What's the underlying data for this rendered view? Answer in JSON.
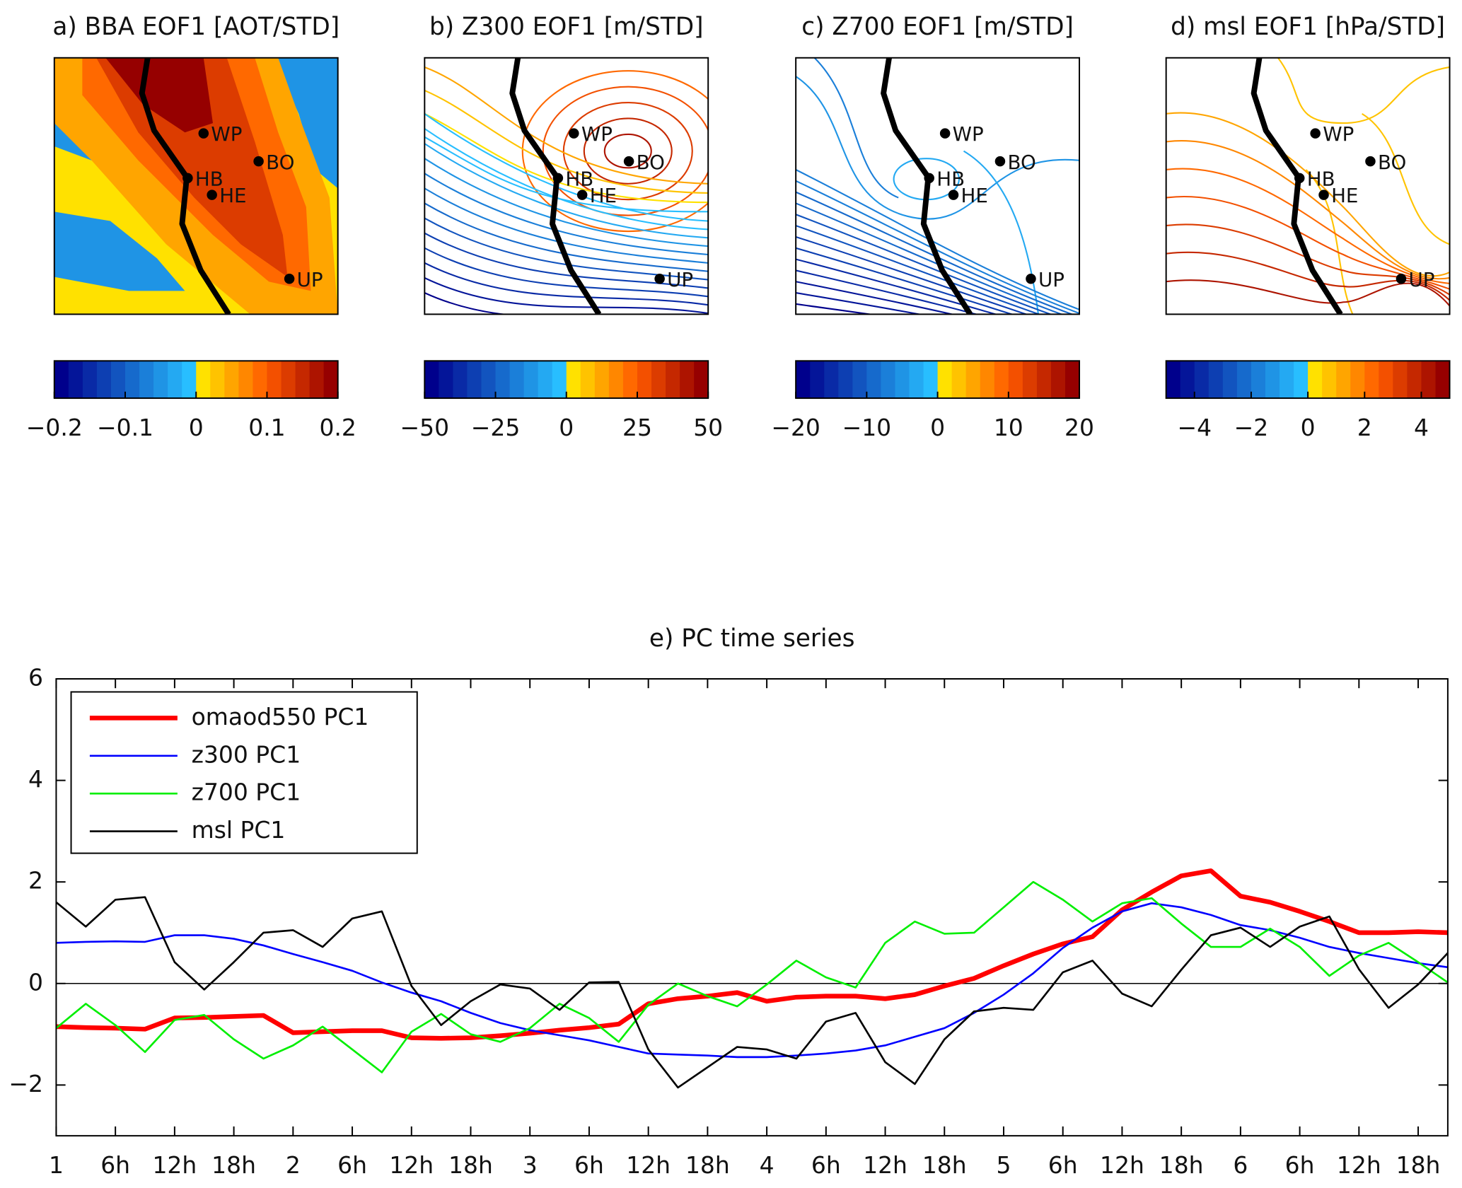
{
  "maps": [
    {
      "title": "a) BBA EOF1 [AOT/STD]",
      "colorbar_lim": [
        -0.2,
        0.2
      ],
      "colorbar_ticks": [
        {
          "value": -0.2,
          "label": "−0.2"
        },
        {
          "value": -0.1,
          "label": "−0.1"
        },
        0,
        0.1,
        0.2
      ]
    },
    {
      "title": "b) Z300 EOF1 [m/STD]",
      "colorbar_lim": [
        -50,
        50
      ],
      "colorbar_ticks": [
        {
          "value": -50,
          "label": "−50"
        },
        {
          "value": -25,
          "label": "−25"
        },
        0,
        25,
        50
      ]
    },
    {
      "title": "c) Z700 EOF1 [m/STD]",
      "colorbar_lim": [
        -20,
        20
      ],
      "colorbar_ticks": [
        {
          "value": -20,
          "label": "−20"
        },
        {
          "value": -10,
          "label": "−10"
        },
        0,
        10,
        20
      ]
    },
    {
      "title": "d) msl EOF1 [hPa/STD]",
      "colorbar_lim": [
        -5,
        5
      ],
      "colorbar_ticks": [
        {
          "value": -4,
          "label": "−4"
        },
        {
          "value": -2,
          "label": "−2"
        },
        0,
        2,
        4
      ]
    }
  ],
  "stations": [
    "WP",
    "BO",
    "HB",
    "HE",
    "UP"
  ],
  "chart_data": {
    "type": "line",
    "title": "e) PC time series",
    "x": [
      0,
      3,
      6,
      9,
      12,
      15,
      18,
      21,
      24,
      27,
      30,
      33,
      36,
      39,
      42,
      45,
      48,
      51,
      54,
      57,
      60,
      63,
      66,
      69,
      72,
      75,
      78,
      81,
      84,
      87,
      90,
      93,
      96,
      99,
      102,
      105,
      108,
      111,
      114,
      117,
      120,
      123,
      126,
      129,
      132,
      135,
      138,
      141
    ],
    "xlim": [
      0,
      141
    ],
    "xticks": [
      {
        "value": 0,
        "label": "1"
      },
      {
        "value": 6,
        "label": "6h"
      },
      {
        "value": 12,
        "label": "12h"
      },
      {
        "value": 18,
        "label": "18h"
      },
      {
        "value": 24,
        "label": "2"
      },
      {
        "value": 30,
        "label": "6h"
      },
      {
        "value": 36,
        "label": "12h"
      },
      {
        "value": 42,
        "label": "18h"
      },
      {
        "value": 48,
        "label": "3"
      },
      {
        "value": 54,
        "label": "6h"
      },
      {
        "value": 60,
        "label": "12h"
      },
      {
        "value": 66,
        "label": "18h"
      },
      {
        "value": 72,
        "label": "4"
      },
      {
        "value": 78,
        "label": "6h"
      },
      {
        "value": 84,
        "label": "12h"
      },
      {
        "value": 90,
        "label": "18h"
      },
      {
        "value": 96,
        "label": "5"
      },
      {
        "value": 102,
        "label": "6h"
      },
      {
        "value": 108,
        "label": "12h"
      },
      {
        "value": 114,
        "label": "18h"
      },
      {
        "value": 120,
        "label": "6"
      },
      {
        "value": 126,
        "label": "6h"
      },
      {
        "value": 132,
        "label": "12h"
      },
      {
        "value": 138,
        "label": "18h"
      }
    ],
    "ylim": [
      -3,
      6
    ],
    "yticks": [
      {
        "value": -2,
        "label": "−2"
      },
      0,
      2,
      4,
      6
    ],
    "reference_line": 0,
    "legend": "upper left",
    "series": [
      {
        "name": "omaod550 PC1",
        "color": "#ff0000",
        "linewidth": 5,
        "values": [
          -0.85,
          -0.87,
          -0.88,
          -0.9,
          -0.68,
          -0.67,
          -0.65,
          -0.63,
          -0.97,
          -0.95,
          -0.93,
          -0.93,
          -1.07,
          -1.08,
          -1.07,
          -1.03,
          -0.98,
          -0.92,
          -0.87,
          -0.8,
          -0.4,
          -0.3,
          -0.25,
          -0.18,
          -0.35,
          -0.27,
          -0.25,
          -0.25,
          -0.3,
          -0.22,
          -0.05,
          0.1,
          0.35,
          0.58,
          0.78,
          0.92,
          1.45,
          1.8,
          2.12,
          2.22,
          1.72,
          1.6,
          1.42,
          1.22,
          1.0,
          1.0,
          1.02,
          1.0
        ]
      },
      {
        "name": "z300 PC1",
        "color": "#0000ff",
        "linewidth": 2,
        "values": [
          0.8,
          0.82,
          0.83,
          0.82,
          0.95,
          0.95,
          0.88,
          0.75,
          0.58,
          0.42,
          0.25,
          0.02,
          -0.18,
          -0.35,
          -0.58,
          -0.78,
          -0.92,
          -1.02,
          -1.12,
          -1.25,
          -1.38,
          -1.4,
          -1.42,
          -1.45,
          -1.45,
          -1.42,
          -1.38,
          -1.32,
          -1.22,
          -1.05,
          -0.88,
          -0.58,
          -0.22,
          0.2,
          0.7,
          1.1,
          1.42,
          1.58,
          1.5,
          1.35,
          1.15,
          1.05,
          0.9,
          0.72,
          0.6,
          0.5,
          0.4,
          0.32
        ]
      },
      {
        "name": "z700 PC1",
        "color": "#00ee00",
        "linewidth": 2,
        "values": [
          -0.88,
          -0.4,
          -0.82,
          -1.35,
          -0.72,
          -0.62,
          -1.1,
          -1.48,
          -1.22,
          -0.85,
          -1.3,
          -1.75,
          -0.95,
          -0.6,
          -1.0,
          -1.15,
          -0.88,
          -0.4,
          -0.68,
          -1.15,
          -0.42,
          0.0,
          -0.25,
          -0.45,
          -0.02,
          0.45,
          0.12,
          -0.08,
          0.8,
          1.22,
          0.98,
          1.0,
          1.5,
          2.0,
          1.65,
          1.22,
          1.58,
          1.68,
          1.18,
          0.72,
          0.72,
          1.08,
          0.72,
          0.15,
          0.55,
          0.8,
          0.42,
          0.02
        ]
      },
      {
        "name": "msl PC1",
        "color": "#000000",
        "linewidth": 2,
        "values": [
          1.6,
          1.12,
          1.65,
          1.7,
          0.42,
          -0.12,
          0.42,
          1.0,
          1.05,
          0.72,
          1.28,
          1.42,
          -0.05,
          -0.82,
          -0.35,
          -0.02,
          -0.1,
          -0.52,
          0.02,
          0.03,
          -1.3,
          -2.05,
          -1.65,
          -1.25,
          -1.3,
          -1.48,
          -0.75,
          -0.58,
          -1.55,
          -1.98,
          -1.1,
          -0.55,
          -0.48,
          -0.52,
          0.22,
          0.45,
          -0.2,
          -0.45,
          0.27,
          0.95,
          1.1,
          0.72,
          1.12,
          1.32,
          0.28,
          -0.48,
          -0.02,
          0.6
        ]
      }
    ]
  }
}
